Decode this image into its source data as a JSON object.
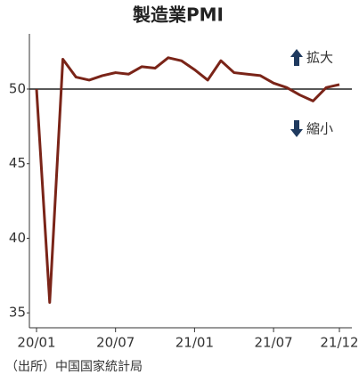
{
  "chart_data": {
    "type": "line",
    "title": "製造業PMI",
    "categories": [
      "20/01",
      null,
      null,
      null,
      null,
      null,
      "20/07",
      null,
      null,
      null,
      null,
      null,
      "21/01",
      null,
      null,
      null,
      null,
      null,
      "21/07",
      null,
      null,
      null,
      null,
      "21/12"
    ],
    "series": [
      {
        "name": "製造業PMI",
        "color": "#7a2418",
        "values": [
          50.0,
          35.7,
          52.0,
          50.8,
          50.6,
          50.9,
          51.1,
          51.0,
          51.5,
          51.4,
          52.1,
          51.9,
          51.3,
          50.6,
          51.9,
          51.1,
          51.0,
          50.9,
          50.4,
          50.1,
          49.6,
          49.2,
          50.1,
          50.3
        ]
      }
    ],
    "ylim": [
      34,
      53.7
    ],
    "yticks": [
      35,
      40,
      45,
      50
    ],
    "reference_line": 50,
    "annotations": [
      "拡大",
      "縮小"
    ],
    "source": "（出所）中国国家統計局"
  }
}
